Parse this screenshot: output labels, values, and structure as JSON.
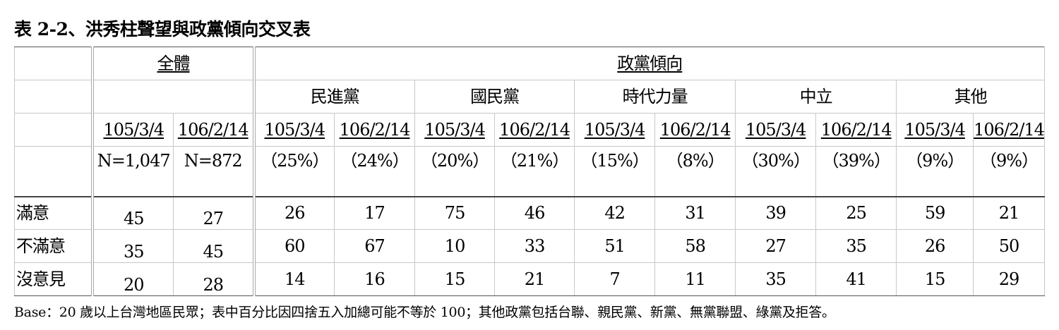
{
  "title": "表 2-2、洪秀柱聲望與政黨傾向交叉表",
  "header": {
    "overall_label": "全體",
    "party_label": "政黨傾向",
    "parties": [
      "民進黨",
      "國民黨",
      "時代力量",
      "中立",
      "其他"
    ],
    "dates": [
      "105/3/4",
      "106/2/14",
      "105/3/4",
      "106/2/14",
      "105/3/4",
      "106/2/14",
      "105/3/4",
      "106/2/14",
      "105/3/4",
      "106/2/14",
      "105/3/4",
      "106/2/14"
    ],
    "bases": [
      "N=1,047",
      "N=872",
      "（25%）",
      "（24%）",
      "（20%）",
      "（21%）",
      "（15%）",
      "（8%）",
      "（30%）",
      "（39%）",
      "（9%）",
      "（9%）"
    ]
  },
  "rows": [
    {
      "label": "滿意",
      "values": [
        "45",
        "27",
        "26",
        "17",
        "75",
        "46",
        "42",
        "31",
        "39",
        "25",
        "59",
        "21"
      ]
    },
    {
      "label": "不滿意",
      "values": [
        "35",
        "45",
        "60",
        "67",
        "10",
        "33",
        "51",
        "58",
        "27",
        "35",
        "26",
        "50"
      ]
    },
    {
      "label": "沒意見",
      "values": [
        "20",
        "28",
        "14",
        "16",
        "15",
        "21",
        "7",
        "11",
        "35",
        "41",
        "15",
        "29"
      ]
    }
  ],
  "note": "Base：20 歲以上台灣地區民眾；表中百分比因四捨五入加總可能不等於 100；其他政黨包括台聯、親民黨、新黨、無黨聯盟、綠黨及拒答。"
}
